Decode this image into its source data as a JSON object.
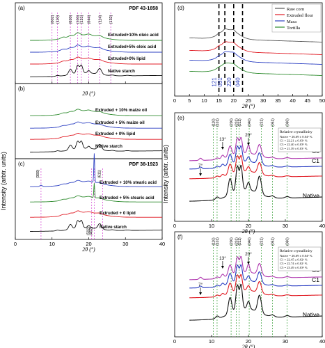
{
  "figure": {
    "y_axis_label_left": "Intensity (arbtr. units)",
    "y_axis_label_right": "Intensity (arbtr. units)",
    "x_axis_label": "2θ (°)"
  },
  "chart_data": [
    {
      "id": "a",
      "panel_label": "(a)",
      "type": "line",
      "reference": "PDF 43-1858",
      "xlim": [
        0,
        40
      ],
      "x_ticks": [
        0,
        10,
        20,
        30,
        40
      ],
      "y_ticks": "none",
      "reflections": [
        {
          "label": "(002)",
          "x": 10.0
        },
        {
          "label": "(110)",
          "x": 11.5
        },
        {
          "label": "(020)",
          "x": 15.0
        },
        {
          "label": "(103)",
          "x": 17.0
        },
        {
          "label": "(121)",
          "x": 18.0
        },
        {
          "label": "(044)",
          "x": 20.0
        },
        {
          "label": "(114)",
          "x": 23.0
        },
        {
          "label": "(132)",
          "x": 26.0
        }
      ],
      "series": [
        {
          "name": "Extruded+10% oleic acid",
          "color": "#2e8b2e"
        },
        {
          "name": "Extruded+5% oleic acid",
          "color": "#2b3fc2"
        },
        {
          "name": "Extruded+0% lipid",
          "color": "#e01b24"
        },
        {
          "name": "Native starch",
          "color": "#111111"
        }
      ]
    },
    {
      "id": "b",
      "panel_label": "(b)",
      "type": "line",
      "xlim": [
        0,
        40
      ],
      "series": [
        {
          "name": "Extruded + 10% maize oil",
          "color": "#2e8b2e"
        },
        {
          "name": "Extruded + 5% maize oil",
          "color": "#2b3fc2"
        },
        {
          "name": "Extruded + 0% lipid",
          "color": "#e01b24"
        },
        {
          "name": "Native starch",
          "color": "#111111"
        }
      ]
    },
    {
      "id": "c",
      "panel_label": "(c)",
      "type": "line",
      "reference": "PDF 38-1923",
      "xlim": [
        0,
        40
      ],
      "x_ticks": [
        0,
        10,
        20,
        30,
        40
      ],
      "reflections": [
        {
          "label": "(300)",
          "x": 7.0
        },
        {
          "label": "(611)",
          "x": 23.8
        },
        {
          "label": "(502)",
          "x": 20.8
        },
        {
          "label": "(402)",
          "x": 21.5
        }
      ],
      "series": [
        {
          "name": "Extruded + 10% stearic acid",
          "color": "#2b3fc2"
        },
        {
          "name": "Extruded + 5% stearic acid",
          "color": "#2e8b2e"
        },
        {
          "name": "Extruded + 0 lipid",
          "color": "#e01b24"
        },
        {
          "name": "Native starch",
          "color": "#111111"
        }
      ]
    },
    {
      "id": "d",
      "panel_label": "(d)",
      "type": "line",
      "xlim": [
        0,
        50
      ],
      "x_ticks": [
        0,
        5,
        10,
        15,
        20,
        25,
        30,
        35,
        40,
        45,
        50
      ],
      "reflections": [
        {
          "label": "121",
          "x": 15.0
        },
        {
          "label": "031",
          "x": 17.0
        },
        {
          "label": "220",
          "x": 20.0
        },
        {
          "label": "040",
          "x": 23.0
        }
      ],
      "legend": "top-right",
      "series": [
        {
          "name": "Raw corn",
          "color": "#555555"
        },
        {
          "name": "Extruded flour",
          "color": "#e01b24"
        },
        {
          "name": "Masa",
          "color": "#2b3fc2"
        },
        {
          "name": "Tortilla",
          "color": "#2e8b2e"
        }
      ]
    },
    {
      "id": "e",
      "panel_label": "(e)",
      "type": "line",
      "xlim": [
        0,
        40
      ],
      "x_ticks": [
        0,
        10,
        20,
        30,
        40
      ],
      "reflections": [
        {
          "label": "(110)",
          "x": 10.5
        },
        {
          "label": "(101)",
          "x": 11.5
        },
        {
          "label": "(200)",
          "x": 15.3
        },
        {
          "label": "(201)",
          "x": 16.7
        },
        {
          "label": "(211)",
          "x": 17.5
        },
        {
          "label": "(040)",
          "x": 20.2
        },
        {
          "label": "(231)",
          "x": 23.5
        },
        {
          "label": "(051)",
          "x": 26.5
        },
        {
          "label": "(060)",
          "x": 30.5
        }
      ],
      "peak_annotations": [
        {
          "label": "7°",
          "x": 7
        },
        {
          "label": "13°",
          "x": 13
        },
        {
          "label": "20°",
          "x": 20
        }
      ],
      "crystallinity": {
        "title": "Relative crystallinity",
        "rows": [
          "Native = 26.69 ± 0.04ᵃ %",
          "C1 = 22.21 ± 0.03ᵇ %",
          "C3 = 22.40 ± 0.03ᵇ %",
          "C5 = 21.39 ± 0.03ᶜ %"
        ]
      },
      "series": [
        {
          "name": "C5",
          "color": "#b03ab0"
        },
        {
          "name": "C3",
          "color": "#2b3fc2"
        },
        {
          "name": "C1",
          "color": "#e01b24"
        },
        {
          "name": "Native",
          "color": "#111111"
        }
      ]
    },
    {
      "id": "f",
      "panel_label": "(f)",
      "type": "line",
      "xlim": [
        0,
        40
      ],
      "x_ticks": [
        0,
        10,
        20,
        30,
        40
      ],
      "reflections": [
        {
          "label": "(110)",
          "x": 10.5
        },
        {
          "label": "(101)",
          "x": 11.5
        },
        {
          "label": "(200)",
          "x": 15.3
        },
        {
          "label": "(201)",
          "x": 16.7
        },
        {
          "label": "(211)",
          "x": 17.5
        },
        {
          "label": "(040)",
          "x": 20.2
        },
        {
          "label": "(231)",
          "x": 23.5
        },
        {
          "label": "(051)",
          "x": 26.5
        },
        {
          "label": "(060)",
          "x": 30.5
        }
      ],
      "peak_annotations": [
        {
          "label": "7°",
          "x": 7
        },
        {
          "label": "13°",
          "x": 13
        },
        {
          "label": "20°",
          "x": 20
        }
      ],
      "crystallinity": {
        "title": "Relative crystallinity",
        "rows": [
          "Native = 26.69 ± 0.04ᵃ %",
          "C1 = 22.45 ± 0.02ᵇ %",
          "C3 = 22.74 ± 0.02ᶜ %",
          "C5 = 23.49 ± 0.03ᵈ %"
        ]
      },
      "series": [
        {
          "name": "C5",
          "color": "#b03ab0"
        },
        {
          "name": "C3",
          "color": "#2b3fc2"
        },
        {
          "name": "C1",
          "color": "#e01b24"
        },
        {
          "name": "Native",
          "color": "#111111"
        }
      ]
    }
  ]
}
